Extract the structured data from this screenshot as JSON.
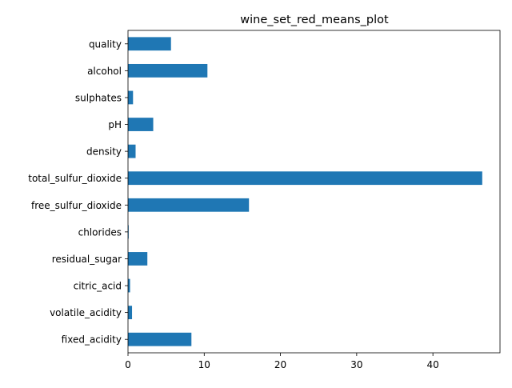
{
  "chart_data": {
    "type": "bar",
    "orientation": "horizontal",
    "title": "wine_set_red_means_plot",
    "xlabel": "",
    "ylabel": "",
    "categories": [
      "fixed_acidity",
      "volatile_acidity",
      "citric_acid",
      "residual_sugar",
      "chlorides",
      "free_sulfur_dioxide",
      "total_sulfur_dioxide",
      "density",
      "pH",
      "sulphates",
      "alcohol",
      "quality"
    ],
    "values": [
      8.32,
      0.53,
      0.27,
      2.54,
      0.087,
      15.87,
      46.47,
      0.997,
      3.31,
      0.66,
      10.42,
      5.64
    ],
    "xlim": [
      0,
      48.8
    ],
    "xticks": [
      0,
      10,
      20,
      30,
      40
    ],
    "grid": false,
    "legend": "none",
    "bar_color": "#1f77b4"
  }
}
